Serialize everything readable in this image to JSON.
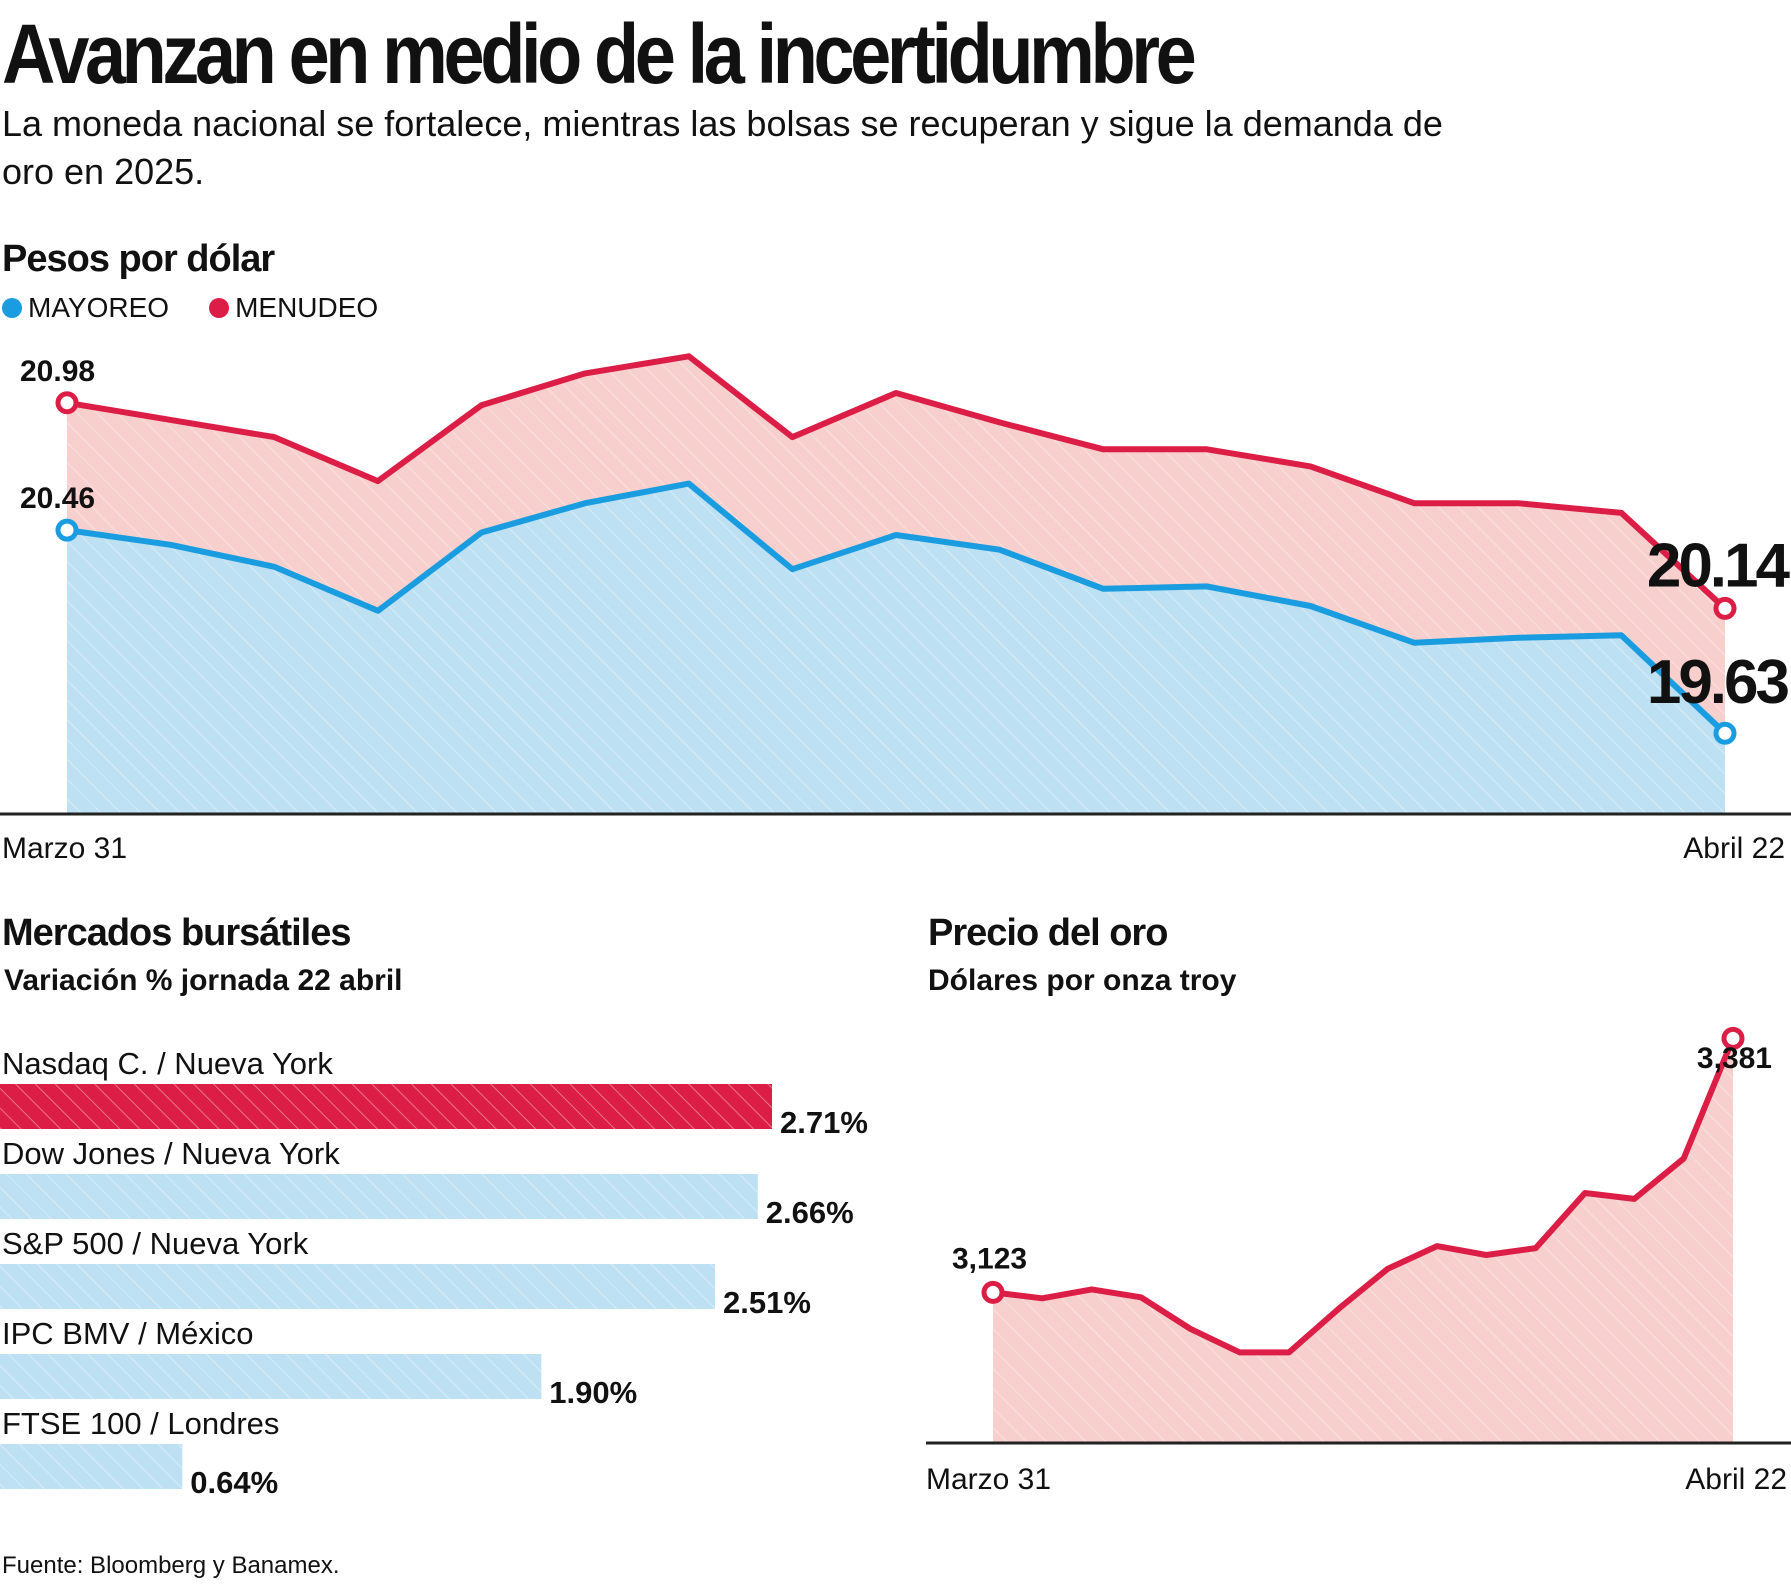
{
  "headline": "Avanzan en medio de la incertidumbre",
  "subhead": "La moneda nacional se fortalece, mientras las bolsas se recuperan y sigue la demanda de oro en 2025.",
  "source": "Fuente: Bloomberg y Banamex.",
  "colors": {
    "red": "#dc1e46",
    "blue": "#1a9de0",
    "red_fill": "#f7cfcd",
    "blue_fill": "#bde0f2",
    "axis": "#222222"
  },
  "chart_data": [
    {
      "id": "fx",
      "type": "area",
      "title": "Pesos por dólar",
      "x_start_label": "Marzo 31",
      "x_end_label": "Abril 22",
      "ylim": [
        19.3,
        21.4
      ],
      "series": [
        {
          "name": "MAYOREO",
          "color": "#1a9de0",
          "values": [
            20.46,
            20.4,
            20.31,
            20.13,
            20.45,
            20.57,
            20.65,
            20.3,
            20.44,
            20.38,
            20.22,
            20.23,
            20.15,
            20.0,
            20.02,
            20.03,
            19.63
          ]
        },
        {
          "name": "MENUDEO",
          "color": "#dc1e46",
          "values": [
            20.98,
            20.91,
            20.84,
            20.66,
            20.97,
            21.1,
            21.17,
            20.84,
            21.02,
            20.9,
            20.79,
            20.79,
            20.72,
            20.57,
            20.57,
            20.53,
            20.14
          ]
        }
      ],
      "labels": {
        "start_menudeo": "20.98",
        "start_mayoreo": "20.46",
        "end_menudeo": "20.14",
        "end_mayoreo": "19.63"
      }
    },
    {
      "id": "stocks",
      "type": "bar",
      "title": "Mercados bursátiles",
      "subtitle": "Variación % jornada 22 abril",
      "categories": [
        "Nasdaq C. / Nueva York",
        "Dow Jones / Nueva York",
        "S&P 500 / Nueva York",
        "IPC BMV / México",
        "FTSE 100 / Londres"
      ],
      "values": [
        2.71,
        2.66,
        2.51,
        1.9,
        0.64
      ],
      "value_labels": [
        "2.71%",
        "2.66%",
        "2.51%",
        "1.90%",
        "0.64%"
      ],
      "highlight_index": 0
    },
    {
      "id": "gold",
      "type": "area",
      "title": "Precio del oro",
      "subtitle": "Dólares por onza troy",
      "x_start_label": "Marzo 31",
      "x_end_label": "Abril 22",
      "ylim": [
        2970,
        3420
      ],
      "values": [
        3123,
        3117,
        3126,
        3118,
        3086,
        3062,
        3062,
        3106,
        3147,
        3170,
        3161,
        3168,
        3224,
        3218,
        3259,
        3381
      ],
      "labels": {
        "start": "3,123",
        "end": "3,381"
      }
    }
  ]
}
